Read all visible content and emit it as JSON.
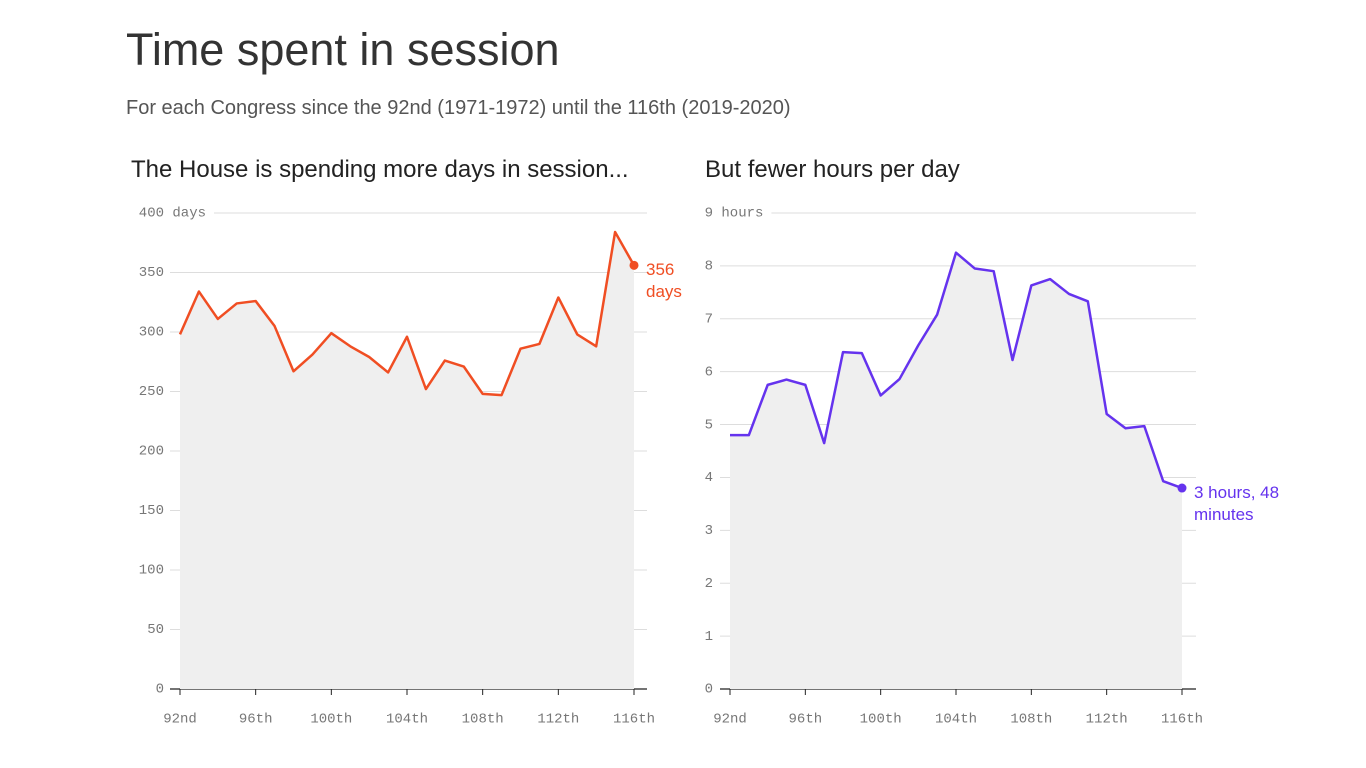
{
  "title": "Time spent in session",
  "subtitle": "For each Congress since the 92nd (1971-1972) until the 116th (2019-2020)",
  "chart_data": [
    {
      "type": "line",
      "title": "The House is spending more days in session...",
      "categories": [
        "92nd",
        null,
        null,
        null,
        "96th",
        null,
        null,
        null,
        "100th",
        null,
        null,
        null,
        "104th",
        null,
        null,
        null,
        "108th",
        null,
        null,
        null,
        "112th",
        null,
        null,
        null,
        "116th"
      ],
      "values": [
        298,
        334,
        311,
        324,
        326,
        305,
        267,
        281,
        299,
        288,
        279,
        266,
        296,
        252,
        276,
        271,
        248,
        247,
        286,
        290,
        329,
        298,
        288,
        384,
        356
      ],
      "value_labels": [
        null,
        null,
        null,
        null,
        null,
        null,
        null,
        null,
        null,
        null,
        null,
        null,
        null,
        null,
        null,
        null,
        null,
        null,
        null,
        null,
        null,
        null,
        null,
        null,
        "356 days"
      ],
      "color": "#f04e23",
      "ylim": [
        0,
        400
      ],
      "yticks": [
        0,
        50,
        100,
        150,
        200,
        250,
        300,
        350,
        {
          "value": 400,
          "label": "400 days"
        }
      ],
      "grid": true
    },
    {
      "type": "line",
      "title": "But fewer hours per day",
      "categories": [
        "92nd",
        null,
        null,
        null,
        "96th",
        null,
        null,
        null,
        "100th",
        null,
        null,
        null,
        "104th",
        null,
        null,
        null,
        "108th",
        null,
        null,
        null,
        "112th",
        null,
        null,
        null,
        "116th"
      ],
      "values": [
        4.8,
        4.8,
        5.75,
        5.85,
        5.75,
        4.65,
        6.37,
        6.35,
        5.55,
        5.86,
        6.5,
        7.08,
        8.25,
        7.95,
        7.9,
        6.22,
        7.63,
        7.75,
        7.47,
        7.33,
        5.2,
        4.93,
        4.97,
        3.93,
        3.8
      ],
      "value_labels": [
        null,
        null,
        null,
        null,
        null,
        null,
        null,
        null,
        null,
        null,
        null,
        null,
        null,
        null,
        null,
        null,
        null,
        null,
        null,
        null,
        null,
        null,
        null,
        null,
        "3 hours, 48 minutes"
      ],
      "color": "#6533ee",
      "ylim": [
        0,
        9
      ],
      "yticks": [
        0,
        1,
        2,
        3,
        4,
        5,
        6,
        7,
        8,
        {
          "value": 9,
          "label": "9 hours"
        }
      ],
      "grid": true
    }
  ]
}
